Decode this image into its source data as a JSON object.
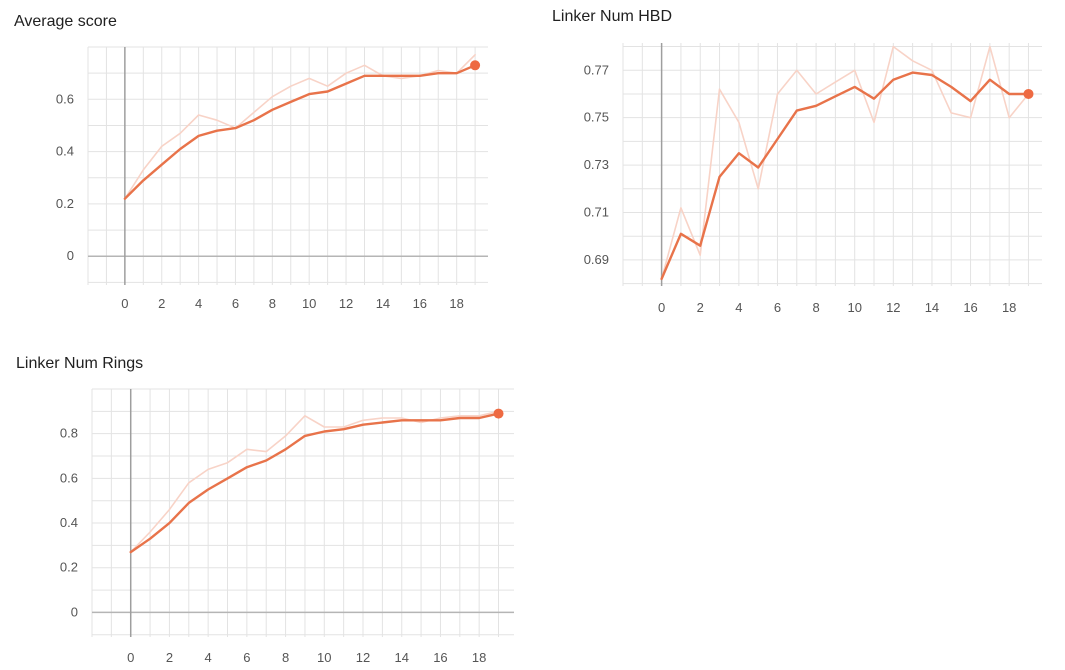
{
  "chart_data": [
    {
      "type": "line",
      "title": "Average score",
      "x": [
        0,
        1,
        2,
        3,
        4,
        5,
        6,
        7,
        8,
        9,
        10,
        11,
        12,
        13,
        14,
        15,
        16,
        17,
        18,
        19
      ],
      "x_ticks": [
        0,
        2,
        4,
        6,
        8,
        10,
        12,
        14,
        16,
        18
      ],
      "xlim": [
        -2,
        19.7
      ],
      "y_ticks": [
        0,
        0.2,
        0.4,
        0.6
      ],
      "y_tick_labels": [
        "0",
        "0.2",
        "0.4",
        "0.6"
      ],
      "ylim": [
        -0.11,
        0.8
      ],
      "grid": true,
      "series": [
        {
          "role": "raw",
          "color": "#f8d3c7",
          "values": [
            0.22,
            0.33,
            0.42,
            0.47,
            0.54,
            0.52,
            0.49,
            0.55,
            0.61,
            0.65,
            0.68,
            0.65,
            0.7,
            0.73,
            0.69,
            0.68,
            0.69,
            0.71,
            0.7,
            0.77
          ]
        },
        {
          "role": "smoothed",
          "color": "#e8734a",
          "values": [
            0.22,
            0.29,
            0.35,
            0.41,
            0.46,
            0.48,
            0.49,
            0.52,
            0.56,
            0.59,
            0.62,
            0.63,
            0.66,
            0.69,
            0.69,
            0.69,
            0.69,
            0.7,
            0.7,
            0.73
          ]
        }
      ]
    },
    {
      "type": "line",
      "title": "Linker Num HBD",
      "x": [
        0,
        1,
        2,
        3,
        4,
        5,
        6,
        7,
        8,
        9,
        10,
        11,
        12,
        13,
        14,
        15,
        16,
        17,
        18,
        19
      ],
      "x_ticks": [
        0,
        2,
        4,
        6,
        8,
        10,
        12,
        14,
        16,
        18
      ],
      "xlim": [
        -2,
        19.7
      ],
      "y_ticks": [
        0.69,
        0.71,
        0.73,
        0.75,
        0.77
      ],
      "y_tick_labels": [
        "0.69",
        "0.71",
        "0.73",
        "0.75",
        "0.77"
      ],
      "ylim": [
        0.679,
        0.7815
      ],
      "grid": true,
      "series": [
        {
          "role": "raw",
          "color": "#f8d3c7",
          "values": [
            0.682,
            0.712,
            0.692,
            0.762,
            0.748,
            0.72,
            0.76,
            0.77,
            0.76,
            0.765,
            0.77,
            0.748,
            0.78,
            0.774,
            0.77,
            0.752,
            0.75,
            0.78,
            0.75,
            0.76
          ]
        },
        {
          "role": "smoothed",
          "color": "#e8734a",
          "values": [
            0.682,
            0.701,
            0.696,
            0.725,
            0.735,
            0.729,
            0.741,
            0.753,
            0.755,
            0.759,
            0.763,
            0.758,
            0.766,
            0.769,
            0.768,
            0.763,
            0.757,
            0.766,
            0.76,
            0.76
          ]
        }
      ]
    },
    {
      "type": "line",
      "title": "Linker Num Rings",
      "x": [
        0,
        1,
        2,
        3,
        4,
        5,
        6,
        7,
        8,
        9,
        10,
        11,
        12,
        13,
        14,
        15,
        16,
        17,
        18,
        19
      ],
      "x_ticks": [
        0,
        2,
        4,
        6,
        8,
        10,
        12,
        14,
        16,
        18
      ],
      "xlim": [
        -2,
        19.8
      ],
      "y_ticks": [
        0,
        0.2,
        0.4,
        0.6,
        0.8
      ],
      "y_tick_labels": [
        "0",
        "0.2",
        "0.4",
        "0.6",
        "0.8"
      ],
      "ylim": [
        -0.11,
        1.0
      ],
      "grid": true,
      "series": [
        {
          "role": "raw",
          "color": "#f8d3c7",
          "values": [
            0.27,
            0.36,
            0.46,
            0.58,
            0.64,
            0.67,
            0.73,
            0.72,
            0.79,
            0.88,
            0.83,
            0.83,
            0.86,
            0.87,
            0.87,
            0.85,
            0.87,
            0.88,
            0.88,
            0.9
          ]
        },
        {
          "role": "smoothed",
          "color": "#e8734a",
          "values": [
            0.27,
            0.33,
            0.4,
            0.49,
            0.55,
            0.6,
            0.65,
            0.68,
            0.73,
            0.79,
            0.81,
            0.82,
            0.84,
            0.85,
            0.86,
            0.86,
            0.86,
            0.87,
            0.87,
            0.89
          ]
        }
      ]
    }
  ]
}
